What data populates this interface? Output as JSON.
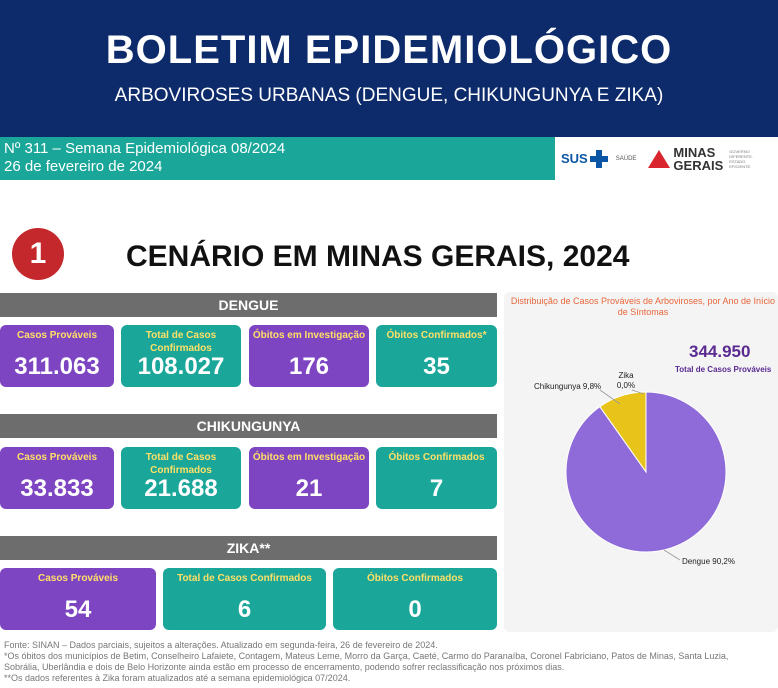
{
  "header": {
    "title": "BOLETIM EPIDEMIOLÓGICO",
    "subtitle": "ARBOVIROSES URBANAS (DENGUE, CHIKUNGUNYA E ZIKA)"
  },
  "info": {
    "line1": "Nº 311 – Semana Epidemiológica 08/2024",
    "line2": "26 de fevereiro de 2024"
  },
  "logos": {
    "sus": "SUS",
    "saude": "SAÚDE",
    "mg_line1": "MINAS",
    "mg_line2": "GERAIS",
    "mg_small": "GOVERNO DIFERENTE. ESTADO EFICIENTE."
  },
  "section": {
    "number": "1",
    "title": "CENÁRIO EM MINAS GERAIS, 2024"
  },
  "dengue": {
    "band": "DENGUE",
    "cards": [
      {
        "label": "Casos Prováveis",
        "value": "311.063"
      },
      {
        "label": "Total de Casos Confirmados",
        "value": "108.027"
      },
      {
        "label": "Óbitos em Investigação",
        "value": "176"
      },
      {
        "label": "Óbitos Confirmados*",
        "value": "35"
      }
    ]
  },
  "chikungunya": {
    "band": "CHIKUNGUNYA",
    "cards": [
      {
        "label": "Casos Prováveis",
        "value": "33.833"
      },
      {
        "label": "Total de Casos Confirmados",
        "value": "21.688"
      },
      {
        "label": "Óbitos em Investigação",
        "value": "21"
      },
      {
        "label": "Óbitos Confirmados",
        "value": "7"
      }
    ]
  },
  "zika": {
    "band": "ZIKA**",
    "cards": [
      {
        "label": "Casos Prováveis",
        "value": "54"
      },
      {
        "label": "Total de Casos Confirmados",
        "value": "6"
      },
      {
        "label": "Óbitos Confirmados",
        "value": "0"
      }
    ]
  },
  "chart": {
    "title": "Distribuição de Casos Prováveis de Arboviroses, por Ano de Início de Síntomas",
    "total": "344.950",
    "total_label": "Total de Casos Prováveis"
  },
  "chart_data": {
    "type": "pie",
    "slices": [
      {
        "label": "Dengue 90,2%",
        "value": 90.2,
        "color": "#8e6bd9"
      },
      {
        "label": "Chikungunya 9,8%",
        "value": 9.8,
        "color": "#e8c41a"
      },
      {
        "label": "Zika 0,0%",
        "value": 0.0,
        "color": "#1aa79a"
      }
    ]
  },
  "colors": {
    "header": "#0d2a6b",
    "teal": "#1aa79a",
    "purple": "#7e45c3",
    "band": "#6d6d6d",
    "accent_red": "#c4282c"
  },
  "footer": {
    "line1": "Fonte: SINAN – Dados parciais, sujeitos a alterações. Atualizado em segunda-feira, 26 de fevereiro de 2024.",
    "line2": "*Os óbitos dos municípios de Betim, Conselheiro Lafaiete, Contagem, Mateus Leme, Morro da Garça, Caeté, Carmo do Paranaíba, Coronel Fabriciano, Patos de Minas, Santa Luzia,",
    "line3": "Sobrália, Uberlândia e dois de Belo Horizonte ainda estão em processo de encerramento, podendo sofrer reclassificação nos próximos dias.",
    "line4": "**Os dados referentes à Zika foram atualizados até a semana epidemiológica 07/2024."
  }
}
